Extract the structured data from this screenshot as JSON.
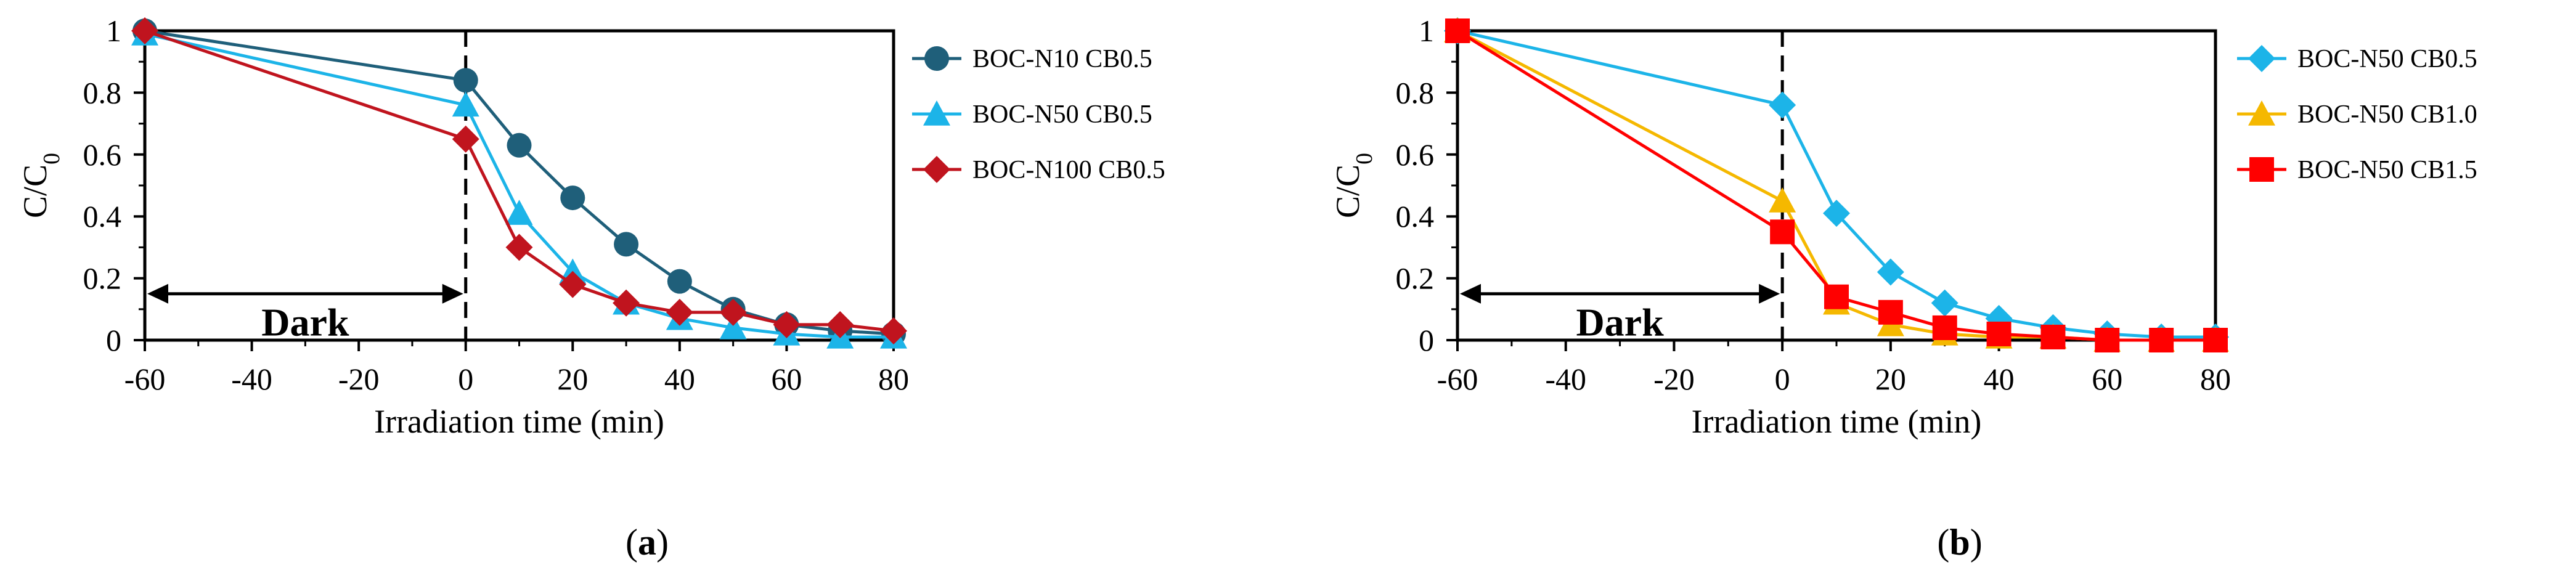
{
  "chart_data": [
    {
      "type": "line",
      "panel_label": "a",
      "xlabel": "Irradiation time (min)",
      "ylabel": "C/C",
      "ylabel_subscript": "0",
      "xlim": [
        -60,
        80
      ],
      "ylim": [
        0,
        1
      ],
      "xticks": [
        -60,
        -40,
        -20,
        0,
        20,
        40,
        60,
        80
      ],
      "xtick_labels": [
        "-60",
        "-40",
        "-20",
        "0",
        "20",
        "40",
        "60",
        "80"
      ],
      "yticks": [
        0,
        0.2,
        0.4,
        0.6,
        0.8,
        1
      ],
      "ytick_labels": [
        "0",
        "0.2",
        "0.4",
        "0.6",
        "0.8",
        "1"
      ],
      "grid": false,
      "legend_position": "right-outside",
      "annotations": [
        {
          "text": "Dark",
          "x_from": -60,
          "x_to": 0,
          "y": 0.15
        }
      ],
      "vline_x": 0,
      "series": [
        {
          "name": "BOC-N10 CB0.5",
          "color": "#1f5f7a",
          "marker": "circle",
          "x": [
            -60,
            0,
            10,
            20,
            30,
            40,
            50,
            60,
            70,
            80
          ],
          "y": [
            1.0,
            0.84,
            0.63,
            0.46,
            0.31,
            0.19,
            0.1,
            0.05,
            0.03,
            0.02
          ]
        },
        {
          "name": "BOC-N50 CB0.5",
          "color": "#1cb4e8",
          "marker": "triangle",
          "x": [
            -60,
            0,
            10,
            20,
            30,
            40,
            50,
            60,
            70,
            80
          ],
          "y": [
            0.99,
            0.76,
            0.41,
            0.22,
            0.12,
            0.07,
            0.04,
            0.02,
            0.01,
            0.01
          ]
        },
        {
          "name": "BOC-N100 CB0.5",
          "color": "#c0141e",
          "marker": "diamond",
          "x": [
            -60,
            0,
            10,
            20,
            30,
            40,
            50,
            60,
            70,
            80
          ],
          "y": [
            1.0,
            0.65,
            0.3,
            0.18,
            0.12,
            0.09,
            0.09,
            0.05,
            0.05,
            0.03
          ]
        }
      ]
    },
    {
      "type": "line",
      "panel_label": "b",
      "xlabel": "Irradiation time (min)",
      "ylabel": "C/C",
      "ylabel_subscript": "0",
      "xlim": [
        -60,
        80
      ],
      "ylim": [
        0,
        1
      ],
      "xticks": [
        -60,
        -40,
        -20,
        0,
        20,
        40,
        60,
        80
      ],
      "xtick_labels": [
        "-60",
        "-40",
        "-20",
        "0",
        "20",
        "40",
        "60",
        "80"
      ],
      "yticks": [
        0,
        0.2,
        0.4,
        0.6,
        0.8,
        1
      ],
      "ytick_labels": [
        "0",
        "0.2",
        "0.4",
        "0.6",
        "0.8",
        "1"
      ],
      "grid": false,
      "legend_position": "right-outside",
      "annotations": [
        {
          "text": "Dark",
          "x_from": -60,
          "x_to": 0,
          "y": 0.15
        }
      ],
      "vline_x": 0,
      "series": [
        {
          "name": "BOC-N50 CB0.5",
          "color": "#1cb4e8",
          "marker": "diamond",
          "x": [
            -60,
            0,
            10,
            20,
            30,
            40,
            50,
            60,
            70,
            80
          ],
          "y": [
            1.0,
            0.76,
            0.41,
            0.22,
            0.12,
            0.07,
            0.04,
            0.02,
            0.01,
            0.01
          ]
        },
        {
          "name": "BOC-N50 CB1.0",
          "color": "#f5b800",
          "marker": "triangle",
          "x": [
            -60,
            0,
            10,
            20,
            30,
            40,
            50,
            60,
            70,
            80
          ],
          "y": [
            1.0,
            0.45,
            0.12,
            0.05,
            0.02,
            0.01,
            0.01,
            0.0,
            0.0,
            0.0
          ]
        },
        {
          "name": "BOC-N50 CB1.5",
          "color": "#ff0000",
          "marker": "square",
          "x": [
            -60,
            0,
            10,
            20,
            30,
            40,
            50,
            60,
            70,
            80
          ],
          "y": [
            1.0,
            0.35,
            0.14,
            0.09,
            0.04,
            0.02,
            0.01,
            0.0,
            0.0,
            0.0
          ]
        }
      ]
    }
  ]
}
